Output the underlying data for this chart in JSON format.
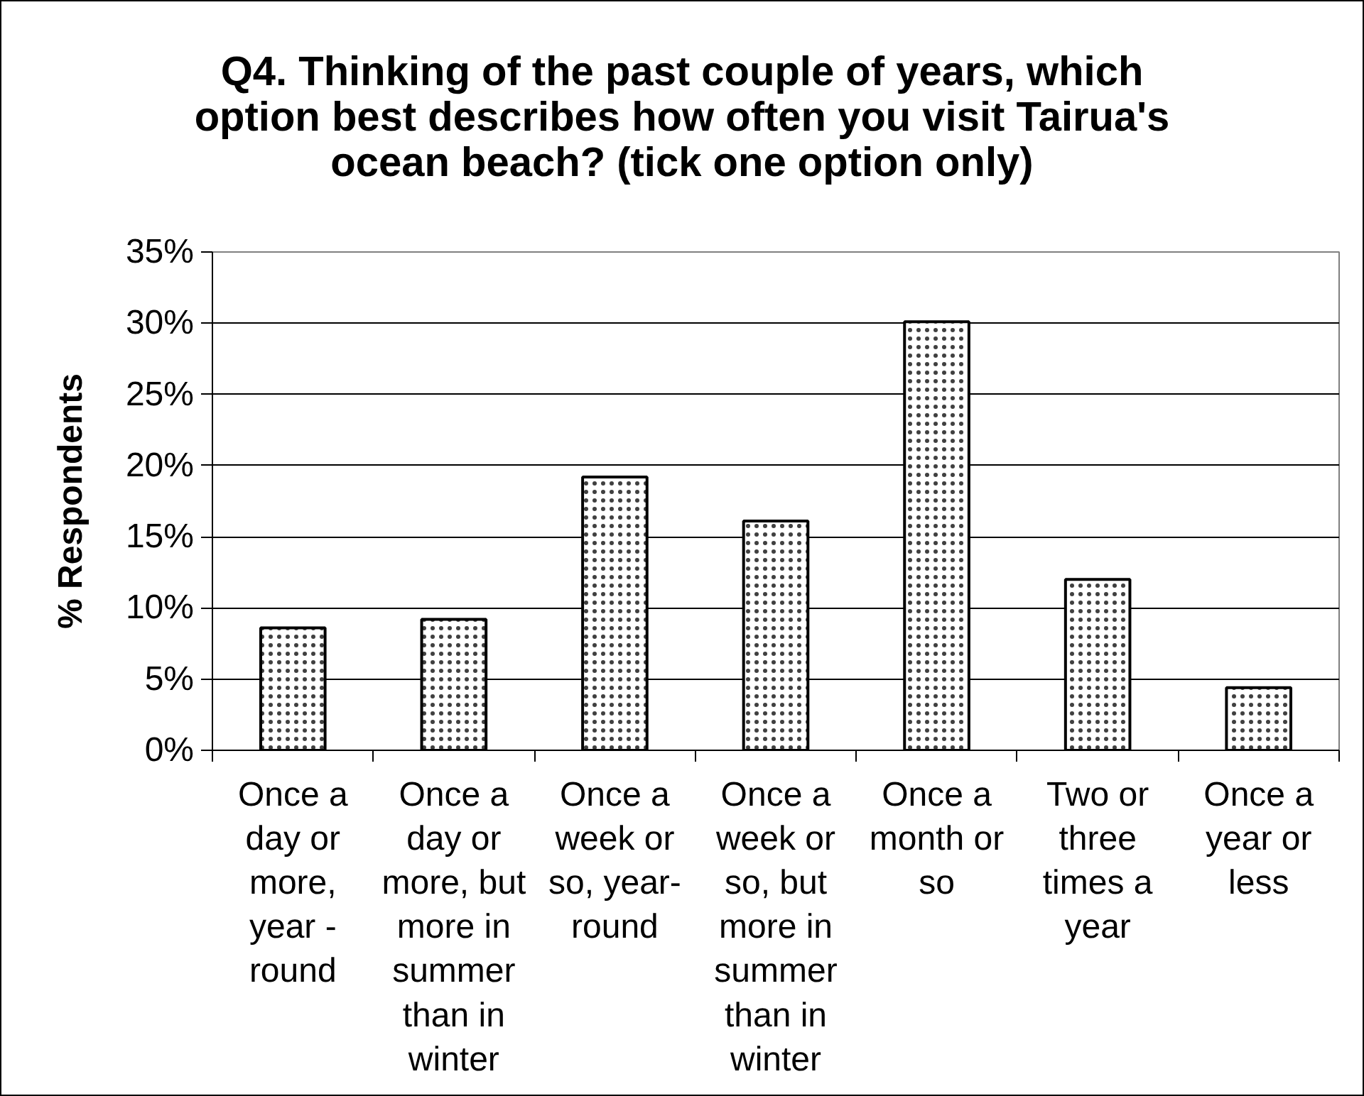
{
  "chart_data": {
    "type": "bar",
    "title": "Q4. Thinking of the past couple of years, which option best describes how often you visit Tairua's ocean beach? (tick one option only)",
    "ylabel": "% Respondents",
    "categories": [
      "Once a day or more, year - round",
      "Once a day or more, but more in summer than in winter",
      "Once a week or so, year-round",
      "Once a week or so, but more in summer than in winter",
      "Once a month or so",
      "Two or three times a year",
      "Once a year or less"
    ],
    "values": [
      8.6,
      9.2,
      19.2,
      16.1,
      30.1,
      12.0,
      4.4
    ],
    "color": "#ffffff",
    "ylim": [
      0,
      35
    ],
    "yticks": [
      {
        "value": 0,
        "label": "0%"
      },
      {
        "value": 5,
        "label": "5%"
      },
      {
        "value": 10,
        "label": "10%"
      },
      {
        "value": 15,
        "label": "15%"
      },
      {
        "value": 20,
        "label": "20%"
      },
      {
        "value": 25,
        "label": "25%"
      },
      {
        "value": 30,
        "label": "30%"
      },
      {
        "value": 35,
        "label": "35%"
      }
    ],
    "grid": "y"
  }
}
